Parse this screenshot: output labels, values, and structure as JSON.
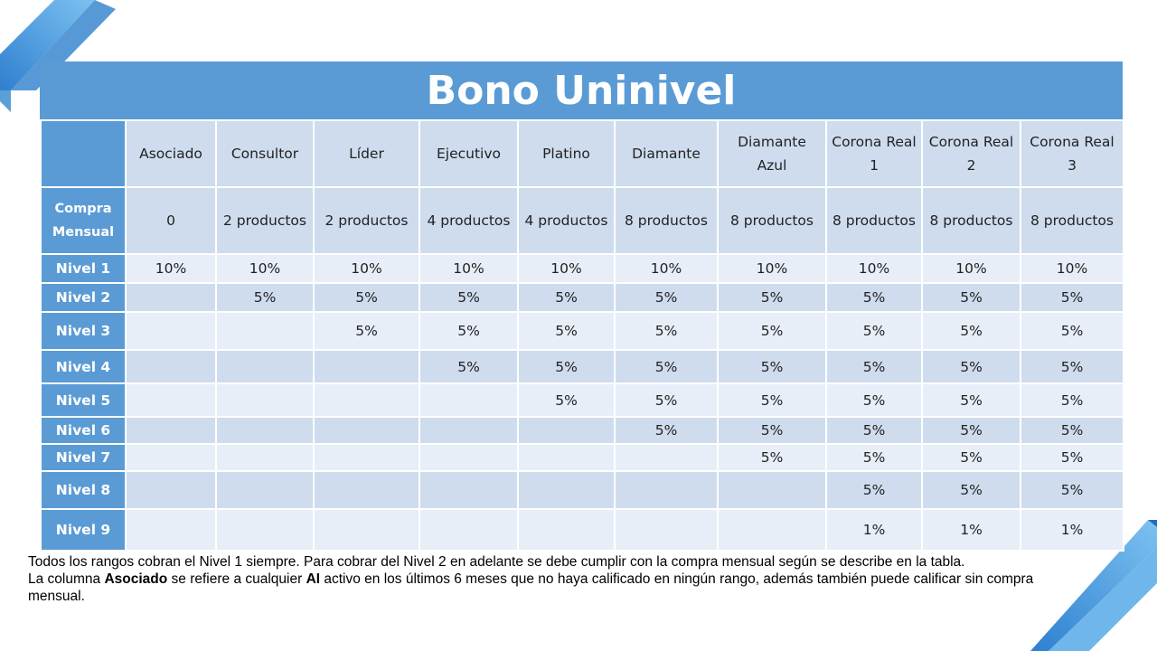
{
  "title": "Bono Uninivel",
  "columns": [
    "Asociado",
    "Consultor",
    "Líder",
    "Ejecutivo",
    "Platino",
    "Diamante",
    "Diamante Azul",
    "Corona Real 1",
    "Corona Real 2",
    "Corona Real 3"
  ],
  "compra": {
    "label": "Compra Mensual",
    "values": [
      "0",
      "2 productos",
      "2 productos",
      "4 productos",
      "4 productos",
      "8 productos",
      "8 productos",
      "8 productos",
      "8 productos",
      "8 productos"
    ]
  },
  "rows": [
    {
      "label": "Nivel 1",
      "values": [
        "10%",
        "10%",
        "10%",
        "10%",
        "10%",
        "10%",
        "10%",
        "10%",
        "10%",
        "10%"
      ]
    },
    {
      "label": "Nivel 2",
      "values": [
        "",
        "5%",
        "5%",
        "5%",
        "5%",
        "5%",
        "5%",
        "5%",
        "5%",
        "5%"
      ]
    },
    {
      "label": "Nivel 3",
      "values": [
        "",
        "",
        "5%",
        "5%",
        "5%",
        "5%",
        "5%",
        "5%",
        "5%",
        "5%"
      ]
    },
    {
      "label": "Nivel 4",
      "values": [
        "",
        "",
        "",
        "5%",
        "5%",
        "5%",
        "5%",
        "5%",
        "5%",
        "5%"
      ]
    },
    {
      "label": "Nivel 5",
      "values": [
        "",
        "",
        "",
        "",
        "5%",
        "5%",
        "5%",
        "5%",
        "5%",
        "5%"
      ]
    },
    {
      "label": "Nivel 6",
      "values": [
        "",
        "",
        "",
        "",
        "",
        "5%",
        "5%",
        "5%",
        "5%",
        "5%"
      ]
    },
    {
      "label": "Nivel 7",
      "values": [
        "",
        "",
        "",
        "",
        "",
        "",
        "5%",
        "5%",
        "5%",
        "5%"
      ]
    },
    {
      "label": "Nivel 8",
      "values": [
        "",
        "",
        "",
        "",
        "",
        "",
        "",
        "5%",
        "5%",
        "5%"
      ]
    },
    {
      "label": "Nivel 9",
      "values": [
        "",
        "",
        "",
        "",
        "",
        "",
        "",
        "1%",
        "1%",
        "1%"
      ]
    }
  ],
  "note": {
    "line1": "Todos los rangos cobran el Nivel 1 siempre. Para cobrar del Nivel 2 en adelante se debe cumplir con la compra mensual según se describe en la tabla.",
    "line2_a": " La columna ",
    "line2_b": "Asociado",
    "line2_c": " se refiere a cualquier ",
    "line2_d": "AI",
    "line2_e": " activo en los últimos 6 meses que no haya calificado en ningún rango, además también puede calificar sin compra mensual."
  },
  "colors": {
    "header_blue": "#5b9bd5",
    "row_light": "#cfdcee",
    "row_lighter": "#e8eef7"
  }
}
